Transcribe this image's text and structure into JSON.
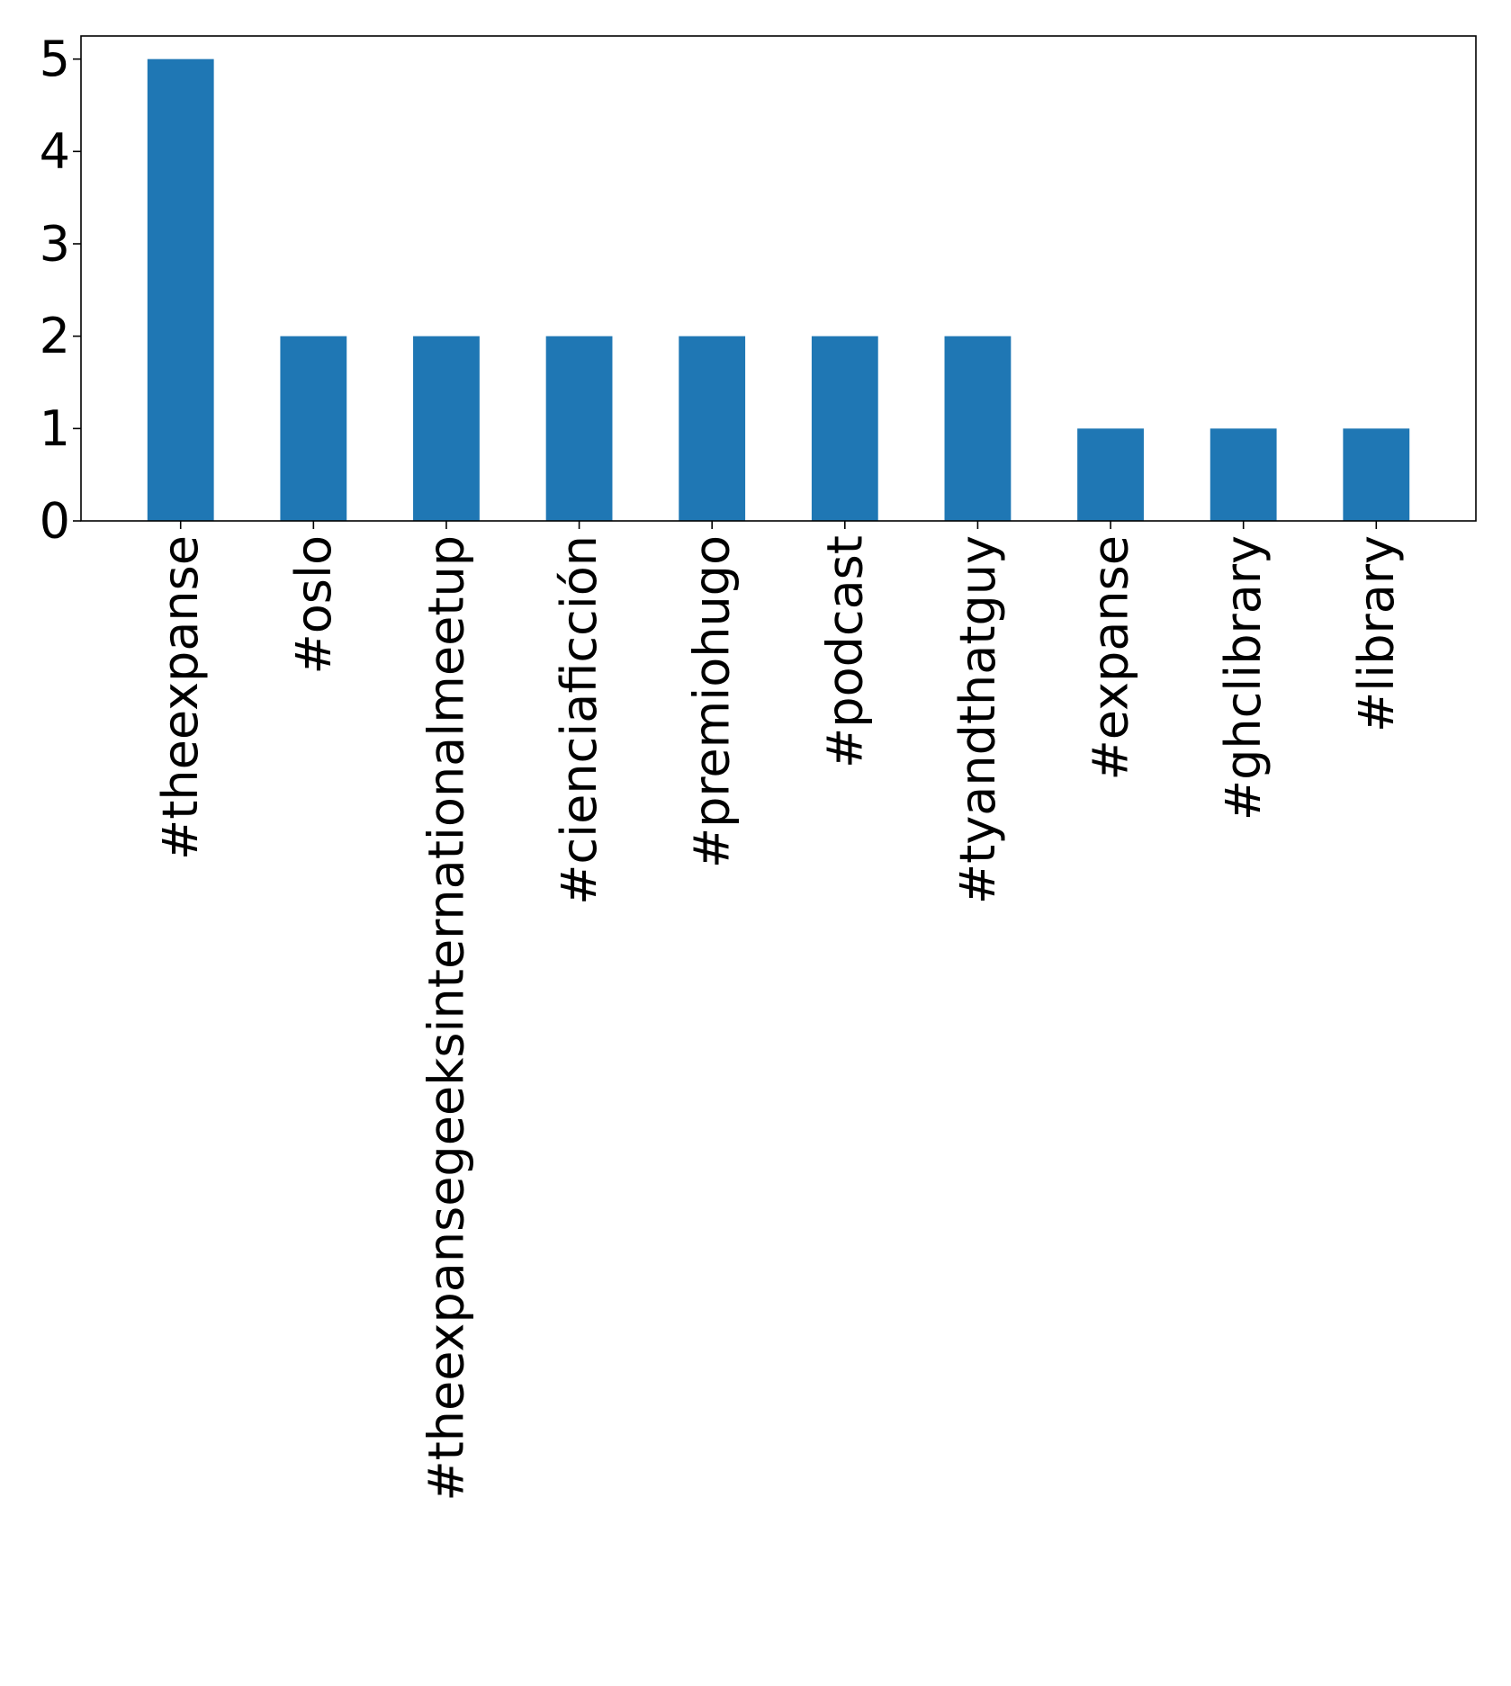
{
  "chart_data": {
    "type": "bar",
    "title": "",
    "xlabel": "",
    "ylabel": "",
    "categories": [
      "#theexpanse",
      "#oslo",
      "#theexpansegeeksinternationalmeetup",
      "#cienciaficción",
      "#premiohugo",
      "#podcast",
      "#tyandthatguy",
      "#expanse",
      "#ghclibrary",
      "#library"
    ],
    "values": [
      5,
      2,
      2,
      2,
      2,
      2,
      2,
      1,
      1,
      1
    ],
    "ylim": [
      0,
      5.25
    ],
    "yticks": [
      0,
      1,
      2,
      3,
      4,
      5
    ],
    "grid": false,
    "legend": "none",
    "bar_color": "#1f77b4"
  }
}
